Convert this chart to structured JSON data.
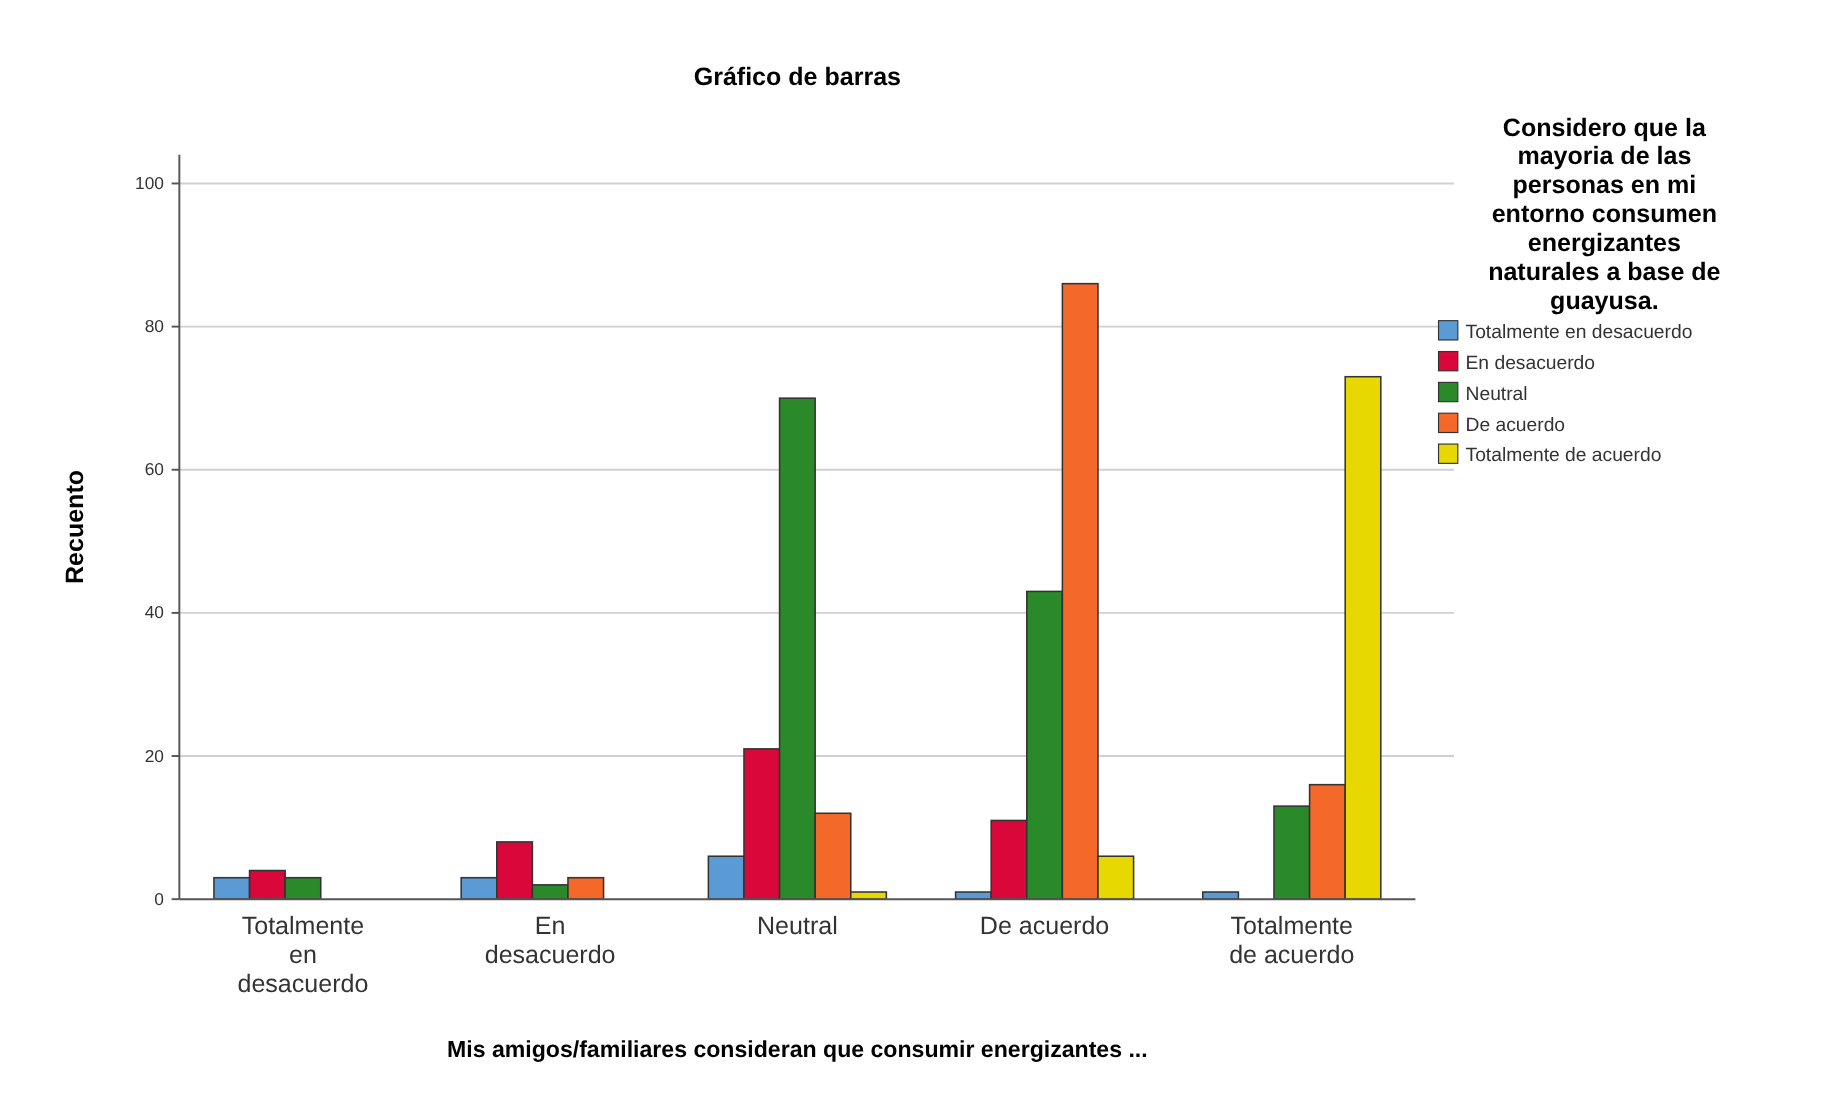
{
  "chart_data": {
    "type": "bar",
    "title": "Gráfico de barras",
    "xlabel": "Mis amigos/familiares consideran que consumir energizantes ...",
    "ylabel": "Recuento",
    "legend_title": "Considero que la mayoria de las personas en mi entorno consumen energizantes naturales a base de guayusa.",
    "categories": [
      "Totalmente en desacuerdo",
      "En desacuerdo",
      "Neutral",
      "De acuerdo",
      "Totalmente de acuerdo"
    ],
    "series": [
      {
        "name": "Totalmente en desacuerdo",
        "color": "#5b9bd5",
        "values": [
          3,
          3,
          6,
          1,
          1
        ]
      },
      {
        "name": "En desacuerdo",
        "color": "#d9073a",
        "values": [
          4,
          8,
          21,
          11,
          null
        ]
      },
      {
        "name": "Neutral",
        "color": "#2a8a2a",
        "values": [
          3,
          2,
          70,
          43,
          13
        ]
      },
      {
        "name": "De acuerdo",
        "color": "#f4692a",
        "values": [
          null,
          3,
          12,
          86,
          16
        ]
      },
      {
        "name": "Totalmente de acuerdo",
        "color": "#e6d800",
        "values": [
          null,
          null,
          1,
          6,
          73
        ]
      }
    ],
    "ylim": [
      0,
      104
    ],
    "yticks": [
      0,
      20,
      40,
      60,
      80,
      100
    ],
    "grid": "y",
    "legend": "right"
  }
}
